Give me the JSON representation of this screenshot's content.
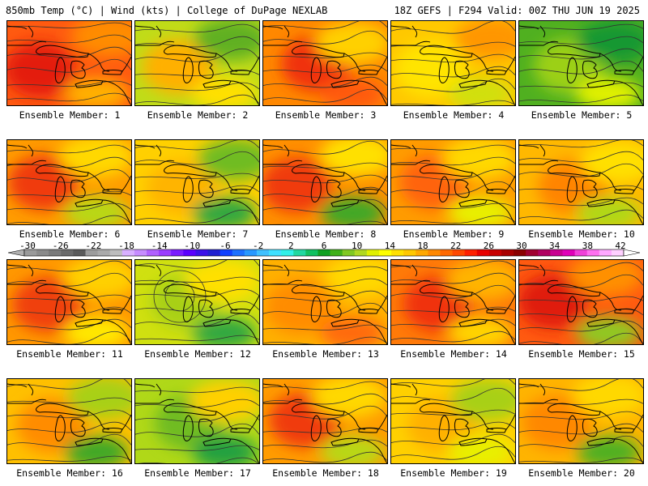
{
  "header": {
    "title_left": "850mb Temp (°C) | Wind (kts) | College of DuPage NEXLAB",
    "title_right": "18Z GEFS | F294 Valid: 00Z THU JUN 19 2025"
  },
  "colorbar": {
    "tick_labels": [
      "-30",
      "-26",
      "-22",
      "-18",
      "-14",
      "-10",
      "-6",
      "-2",
      "2",
      "6",
      "10",
      "14",
      "18",
      "22",
      "26",
      "30",
      "34",
      "38",
      "42"
    ],
    "colors": [
      "#9a9a9a",
      "#8a8a8a",
      "#7a7a7a",
      "#6a6a6a",
      "#5a5a5a",
      "#9c9c9c",
      "#aaaaaa",
      "#bdbdbd",
      "#d8b0ff",
      "#c68cff",
      "#b060ff",
      "#9a3cff",
      "#7a1cff",
      "#5a00ff",
      "#3a10e8",
      "#2020d0",
      "#1040ff",
      "#1c70ff",
      "#2898ff",
      "#40c0ff",
      "#40e0ff",
      "#30f0e8",
      "#20d8a0",
      "#10c060",
      "#10a020",
      "#40b018",
      "#80c820",
      "#b0d820",
      "#e0f000",
      "#ffff00",
      "#ffe000",
      "#ffc800",
      "#ffa800",
      "#ff8800",
      "#ff6800",
      "#ff4800",
      "#ff2000",
      "#e80000",
      "#c80000",
      "#a80000",
      "#8a0000",
      "#a00030",
      "#b00060",
      "#c80090",
      "#e000b8",
      "#f040d8",
      "#ff70f0",
      "#ffa8ff",
      "#ffd0ff"
    ]
  },
  "members": [
    {
      "label": "Ensemble Member: 1",
      "base": "#ff5a10",
      "c1": "#e41a0c",
      "c2": "#ff8c00",
      "c3": "#ffb000"
    },
    {
      "label": "Ensemble Member: 2",
      "base": "#c0dc18",
      "c1": "#ffb000",
      "c2": "#60b020",
      "c3": "#ffe000"
    },
    {
      "label": "Ensemble Member: 3",
      "base": "#ff8800",
      "c1": "#f03010",
      "c2": "#ffd000",
      "c3": "#ff5a10"
    },
    {
      "label": "Ensemble Member: 4",
      "base": "#ffc800",
      "c1": "#ffe400",
      "c2": "#ff9600",
      "c3": "#d0e010"
    },
    {
      "label": "Ensemble Member: 5",
      "base": "#50b020",
      "c1": "#9cd018",
      "c2": "#189830",
      "c3": "#e0f000"
    },
    {
      "label": "Ensemble Member: 6",
      "base": "#ff9c00",
      "c1": "#f03a10",
      "c2": "#ffd800",
      "c3": "#b8d818"
    },
    {
      "label": "Ensemble Member: 7",
      "base": "#ffd000",
      "c1": "#ffb400",
      "c2": "#70bc20",
      "c3": "#30a840"
    },
    {
      "label": "Ensemble Member: 8",
      "base": "#ff9000",
      "c1": "#f03a10",
      "c2": "#ffe000",
      "c3": "#40a828"
    },
    {
      "label": "Ensemble Member: 9",
      "base": "#ff9c00",
      "c1": "#ff6410",
      "c2": "#ffd800",
      "c3": "#e8f000"
    },
    {
      "label": "Ensemble Member: 10",
      "base": "#ffb800",
      "c1": "#ff8400",
      "c2": "#ffe000",
      "c3": "#b0d818"
    },
    {
      "label": "Ensemble Member: 11",
      "base": "#ff9800",
      "c1": "#f04010",
      "c2": "#ffd000",
      "c3": "#ffe800"
    },
    {
      "label": "Ensemble Member: 12",
      "base": "#d0e010",
      "c1": "#a8d018",
      "c2": "#ffe000",
      "c3": "#30a840"
    },
    {
      "label": "Ensemble Member: 13",
      "base": "#ffb000",
      "c1": "#ff8c00",
      "c2": "#ffd800",
      "c3": "#ff6a10"
    },
    {
      "label": "Ensemble Member: 14",
      "base": "#ff7a08",
      "c1": "#f03010",
      "c2": "#ffb400",
      "c3": "#ffd400"
    },
    {
      "label": "Ensemble Member: 15",
      "base": "#ff5a10",
      "c1": "#e01a0c",
      "c2": "#ff9000",
      "c3": "#90c820"
    },
    {
      "label": "Ensemble Member: 16",
      "base": "#ffc000",
      "c1": "#ff8c00",
      "c2": "#a8d018",
      "c3": "#40a828"
    },
    {
      "label": "Ensemble Member: 17",
      "base": "#b0d818",
      "c1": "#70bc20",
      "c2": "#ffd000",
      "c3": "#20a040"
    },
    {
      "label": "Ensemble Member: 18",
      "base": "#ff9c00",
      "c1": "#f03a10",
      "c2": "#ffd800",
      "c3": "#b8d818"
    },
    {
      "label": "Ensemble Member: 19",
      "base": "#ffd000",
      "c1": "#ffb000",
      "c2": "#a8d018",
      "c3": "#e8f000"
    },
    {
      "label": "Ensemble Member: 20",
      "base": "#ffb400",
      "c1": "#ff8800",
      "c2": "#ffd800",
      "c3": "#50b020"
    }
  ]
}
